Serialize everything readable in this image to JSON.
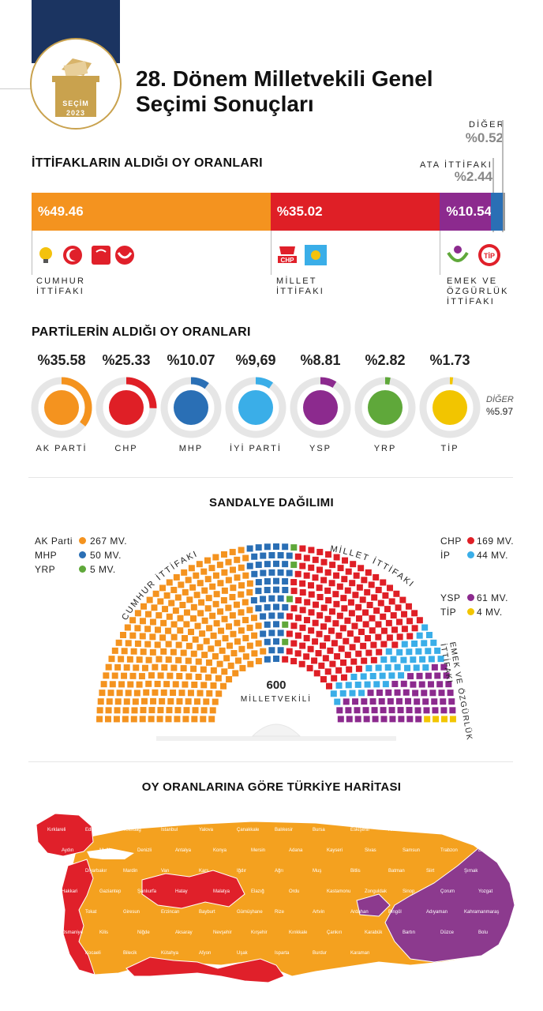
{
  "header": {
    "badge_top": "SEÇİM",
    "badge_year": "2023",
    "title_line1": "28. Dönem Milletvekili Genel",
    "title_line2": "Seçimi Sonuçları"
  },
  "alliances": {
    "section_title": "İTTİFAKLARIN ALDIĞI OY ORANLARI",
    "items": [
      {
        "label_line1": "CUMHUR",
        "label_line2": "İTTİFAKI",
        "label_line3": "",
        "value_text": "%49.46",
        "value": 49.46,
        "color": "#f4931f"
      },
      {
        "label_line1": "MİLLET",
        "label_line2": "İTTİFAKI",
        "label_line3": "",
        "value_text": "%35.02",
        "value": 35.02,
        "color": "#df1f26"
      },
      {
        "label_line1": "EMEK VE",
        "label_line2": "ÖZGÜRLÜK",
        "label_line3": "İTTİFAKI",
        "value_text": "%10.54",
        "value": 10.54,
        "color": "#8c2a8e"
      },
      {
        "label_line1": "ATA İTTİFAKI",
        "label_line2": "",
        "label_line3": "",
        "value_text": "%2.44",
        "value": 2.44,
        "color": "#2a6fb5"
      },
      {
        "label_line1": "DİĞER",
        "label_line2": "",
        "label_line3": "",
        "value_text": "%0.52",
        "value": 0.52,
        "color": "#999999"
      }
    ]
  },
  "parties": {
    "section_title": "PARTİLERİN ALDIĞI OY ORANLARI",
    "other_label": "DİĞER",
    "other_value": "%5.97",
    "items": [
      {
        "name": "AK PARTİ",
        "value_text": "%35.58",
        "value": 35.58,
        "color": "#f4931f",
        "icon": "bulb-icon"
      },
      {
        "name": "CHP",
        "value_text": "%25.33",
        "value": 25.33,
        "color": "#df1f26",
        "icon": "chp-logo-icon"
      },
      {
        "name": "MHP",
        "value_text": "%10.07",
        "value": 10.07,
        "color": "#2a6fb5",
        "icon": "crescent-logo-icon"
      },
      {
        "name": "İYİ PARTİ",
        "value_text": "%9,69",
        "value": 9.69,
        "color": "#3aaee8",
        "icon": "sun-logo-icon"
      },
      {
        "name": "YSP",
        "value_text": "%8.81",
        "value": 8.81,
        "color": "#8c2a8e",
        "icon": "leaf-logo-icon"
      },
      {
        "name": "YRP",
        "value_text": "%2.82",
        "value": 2.82,
        "color": "#5fa83a",
        "icon": "yrp-logo-icon"
      },
      {
        "name": "TİP",
        "value_text": "%1.73",
        "value": 1.73,
        "color": "#f2c500",
        "icon": "tip-logo-icon"
      }
    ]
  },
  "seats": {
    "section_title": "SANDALYE DAĞILIMI",
    "total": "600",
    "total_label": "MİLLETVEKİLİ",
    "arc_left": "CUMHUR İTTİFAKI",
    "arc_top": "MİLLET İTTİFAKI",
    "arc_right_1": "EMEK VE ÖZGÜRLÜK",
    "arc_right_2": "İTTİFAKI",
    "legend_left": [
      {
        "party": "AK Parti",
        "seats_text": "267 MV.",
        "seats": 267,
        "color": "#f4931f"
      },
      {
        "party": "MHP",
        "seats_text": "50 MV.",
        "seats": 50,
        "color": "#2a6fb5"
      },
      {
        "party": "YRP",
        "seats_text": "5 MV.",
        "seats": 5,
        "color": "#5fa83a"
      }
    ],
    "legend_right_top": [
      {
        "party": "CHP",
        "seats_text": "169 MV.",
        "seats": 169,
        "color": "#df1f26"
      },
      {
        "party": "İP",
        "seats_text": "44 MV.",
        "seats": 44,
        "color": "#3aaee8"
      }
    ],
    "legend_right_bottom": [
      {
        "party": "YSP",
        "seats_text": "61 MV.",
        "seats": 61,
        "color": "#8c2a8e"
      },
      {
        "party": "TİP",
        "seats_text": "4 MV.",
        "seats": 4,
        "color": "#f2c500"
      }
    ]
  },
  "map": {
    "section_title": "OY ORANLARINA GÖRE TÜRKİYE HARİTASI",
    "colors": {
      "akp": "#f4a11f",
      "chp": "#e0202a",
      "ysp": "#8c3a8e"
    },
    "labels": [
      "Kırklareli",
      "Edirne",
      "Tekirdağ",
      "İstanbul",
      "Yalova",
      "Çanakkale",
      "Balıkesir",
      "Bursa",
      "Eskişehir",
      "Ankara",
      "İzmir",
      "Manisa",
      "Aydın",
      "Muğla",
      "Denizli",
      "Antalya",
      "Konya",
      "Mersin",
      "Adana",
      "Kayseri",
      "Sivas",
      "Samsun",
      "Trabzon",
      "Erzurum",
      "Tunceli",
      "Diyarbakır",
      "Mardin",
      "Van",
      "Kars",
      "Iğdır",
      "Ağrı",
      "Muş",
      "Bitlis",
      "Batman",
      "Siirt",
      "Şırnak",
      "Hakkari",
      "Gaziantep",
      "Şanlıurfa",
      "Hatay",
      "Malatya",
      "Elazığ",
      "Ordu",
      "Kastamonu",
      "Zonguldak",
      "Sinop",
      "Çorum",
      "Yozgat",
      "Amasya",
      "Tokat",
      "Giresun",
      "Erzincan",
      "Bayburt",
      "Gümüşhane",
      "Rize",
      "Artvin",
      "Ardahan",
      "Bingöl",
      "Adıyaman",
      "Kahramanmaraş",
      "Osmaniye",
      "Kilis",
      "Niğde",
      "Aksaray",
      "Nevşehir",
      "Kırşehir",
      "Kırıkkale",
      "Çankırı",
      "Karabük",
      "Bartın",
      "Düzce",
      "Bolu",
      "Sakarya",
      "Kocaeli",
      "Bilecik",
      "Kütahya",
      "Afyon",
      "Uşak",
      "Isparta",
      "Burdur",
      "Karaman"
    ]
  }
}
